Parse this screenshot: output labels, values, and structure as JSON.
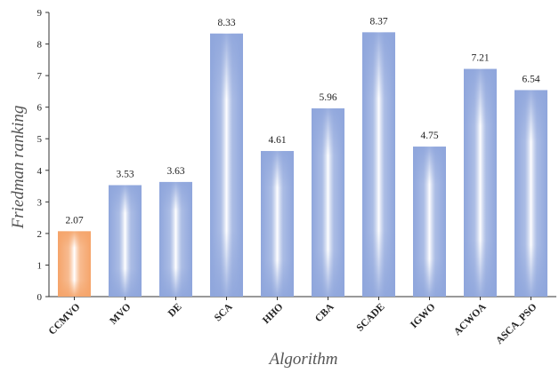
{
  "chart_data": {
    "type": "bar",
    "categories": [
      "CCMVO",
      "MVO",
      "DE",
      "SCA",
      "HHO",
      "CBA",
      "SCADE",
      "IGWO",
      "ACWOA",
      "ASCA_PSO"
    ],
    "values": [
      2.07,
      3.53,
      3.63,
      8.33,
      4.61,
      5.96,
      8.37,
      4.75,
      7.21,
      6.54
    ],
    "value_labels": [
      "2.07",
      "3.53",
      "3.63",
      "8.33",
      "4.61",
      "5.96",
      "8.37",
      "4.75",
      "7.21",
      "6.54"
    ],
    "xlabel": "Algorithm",
    "ylabel": "Friedman ranking",
    "ylim": [
      0,
      9
    ],
    "yticks": [
      "0",
      "1",
      "2",
      "3",
      "4",
      "5",
      "6",
      "7",
      "8",
      "9"
    ],
    "grid": false,
    "colors": {
      "highlight": "#f5a46a",
      "default": "#8fa6dc",
      "center": "#ffffff"
    }
  }
}
